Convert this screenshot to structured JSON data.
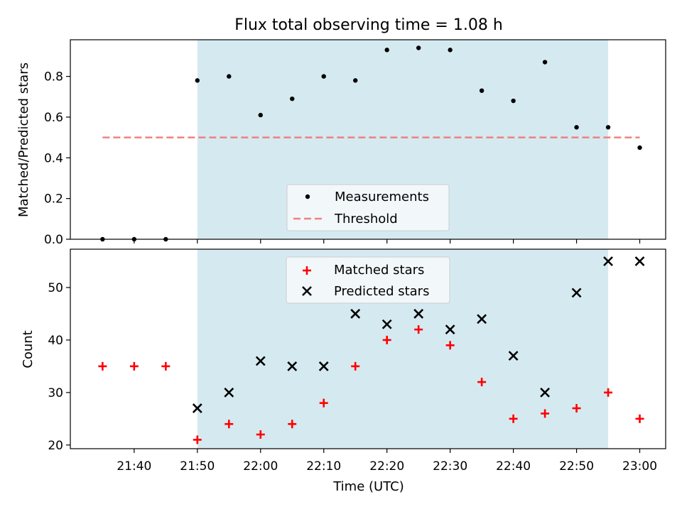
{
  "chart_data": [
    {
      "type": "scatter",
      "title": "Flux total observing time = 1.08 h",
      "xlabel": "",
      "ylabel": "Matched/Predicted stars",
      "ylim": [
        0,
        0.98
      ],
      "yticks": [
        0.0,
        0.2,
        0.4,
        0.6,
        0.8
      ],
      "ytick_labels": [
        "0.0",
        "0.2",
        "0.4",
        "0.6",
        "0.8"
      ],
      "shaded_region": {
        "from": "21:50",
        "to": "22:55",
        "color": "#d5eaf0"
      },
      "series": [
        {
          "name": "Measurements",
          "marker": "dot",
          "color": "#000000",
          "x": [
            "21:35",
            "21:40",
            "21:45",
            "21:50",
            "21:55",
            "22:00",
            "22:05",
            "22:10",
            "22:15",
            "22:20",
            "22:25",
            "22:30",
            "22:35",
            "22:40",
            "22:45",
            "22:50",
            "22:55",
            "23:00"
          ],
          "y": [
            0.0,
            0.0,
            0.0,
            0.78,
            0.8,
            0.61,
            0.69,
            0.8,
            0.78,
            0.93,
            0.94,
            0.93,
            0.73,
            0.68,
            0.87,
            0.55,
            0.55,
            0.45
          ]
        },
        {
          "name": "Threshold",
          "marker": "dashed-line",
          "color": "#f08080",
          "x": [
            "21:35",
            "23:00"
          ],
          "y": [
            0.5,
            0.5
          ]
        }
      ],
      "legend": "lower-center"
    },
    {
      "type": "scatter",
      "title": "",
      "xlabel": "Time (UTC)",
      "ylabel": "Count",
      "ylim": [
        19.3,
        57.3
      ],
      "yticks": [
        20,
        30,
        40,
        50
      ],
      "ytick_labels": [
        "20",
        "30",
        "40",
        "50"
      ],
      "xticks": [
        "21:40",
        "21:50",
        "22:00",
        "22:10",
        "22:20",
        "22:30",
        "22:40",
        "22:50",
        "23:00"
      ],
      "shaded_region": {
        "from": "21:50",
        "to": "22:55",
        "color": "#d5eaf0"
      },
      "series": [
        {
          "name": "Matched stars",
          "marker": "plus",
          "color": "#ff0000",
          "x": [
            "21:35",
            "21:40",
            "21:45",
            "21:50",
            "21:55",
            "22:00",
            "22:05",
            "22:10",
            "22:15",
            "22:20",
            "22:25",
            "22:30",
            "22:35",
            "22:40",
            "22:45",
            "22:50",
            "22:55",
            "23:00"
          ],
          "y": [
            35,
            35,
            35,
            21,
            24,
            22,
            24,
            28,
            35,
            40,
            42,
            39,
            32,
            25,
            26,
            27,
            30,
            25
          ]
        },
        {
          "name": "Predicted stars",
          "marker": "x",
          "color": "#000000",
          "x": [
            "21:50",
            "21:55",
            "22:00",
            "22:05",
            "22:10",
            "22:15",
            "22:20",
            "22:25",
            "22:30",
            "22:35",
            "22:40",
            "22:45",
            "22:50",
            "22:55",
            "23:00"
          ],
          "y": [
            27,
            30,
            36,
            35,
            35,
            45,
            43,
            45,
            42,
            44,
            37,
            30,
            49,
            55,
            55
          ]
        }
      ],
      "legend": "upper-center"
    }
  ]
}
